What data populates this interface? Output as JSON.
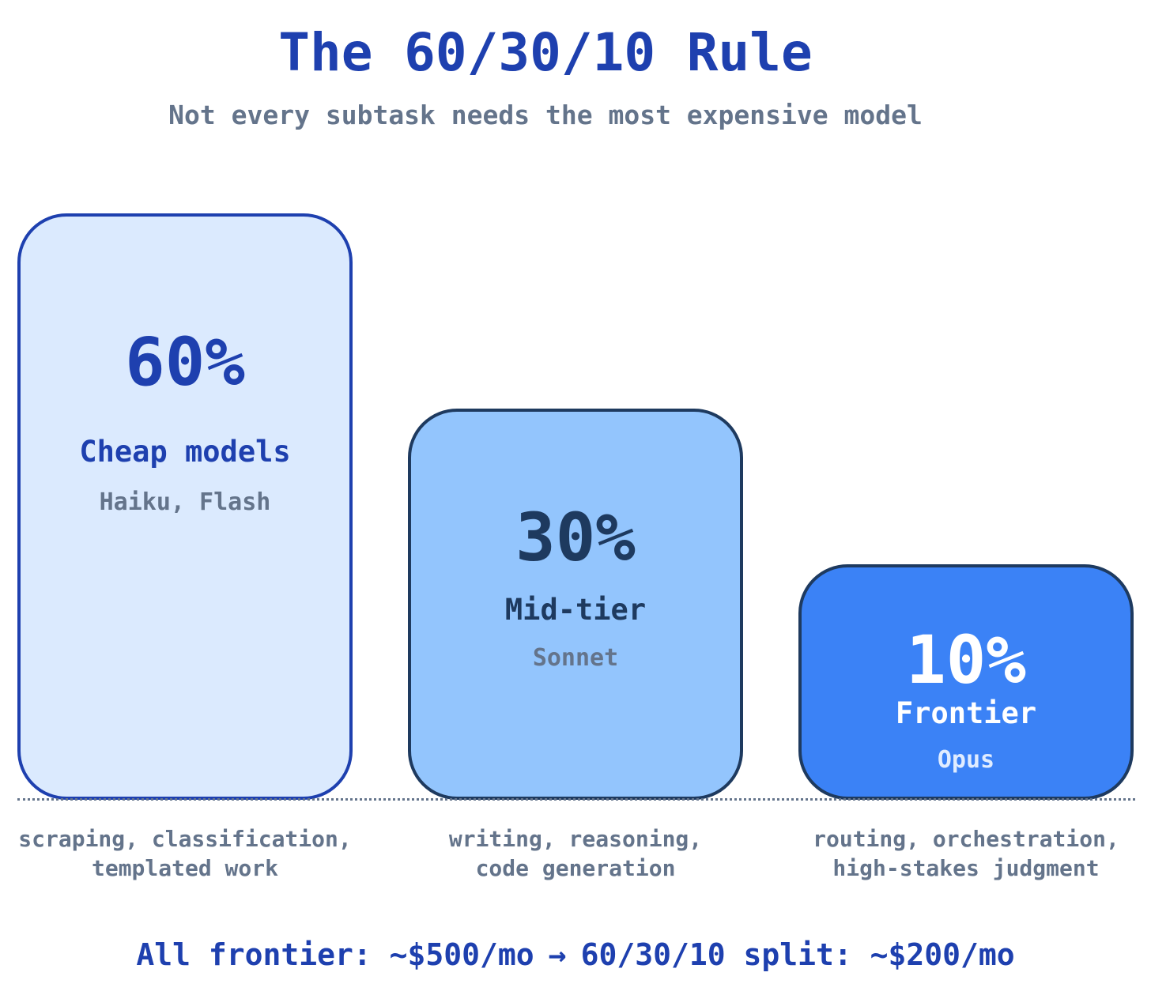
{
  "chart_data": {
    "type": "bar",
    "title": "The 60/30/10 Rule",
    "subtitle": "Not every subtask needs the most expensive model",
    "categories": [
      "Cheap models",
      "Mid-tier",
      "Frontier"
    ],
    "values": [
      60,
      30,
      10
    ],
    "unit": "%",
    "bars": [
      {
        "percent_label": "60%",
        "tier": "Cheap models",
        "models": "Haiku, Flash",
        "use_cases": [
          "scraping, classification,",
          "templated work"
        ],
        "fill": "#dbeafe",
        "stroke": "#1e40af"
      },
      {
        "percent_label": "30%",
        "tier": "Mid-tier",
        "models": "Sonnet",
        "use_cases": [
          "writing, reasoning,",
          "code generation"
        ],
        "fill": "#93c5fd",
        "stroke": "#1e3a5f"
      },
      {
        "percent_label": "10%",
        "tier": "Frontier",
        "models": "Opus",
        "use_cases": [
          "routing, orchestration,",
          "high-stakes judgment"
        ],
        "fill": "#3b82f6",
        "stroke": "#1e3a5f"
      }
    ],
    "ylim": [
      0,
      60
    ],
    "grid": false,
    "legend": "none"
  },
  "footer": {
    "left": "All frontier: ~$500/mo",
    "arrow": "→",
    "right": "60/30/10 split: ~$200/mo"
  },
  "colors": {
    "accent": "#1e40af",
    "muted": "#64748b"
  }
}
